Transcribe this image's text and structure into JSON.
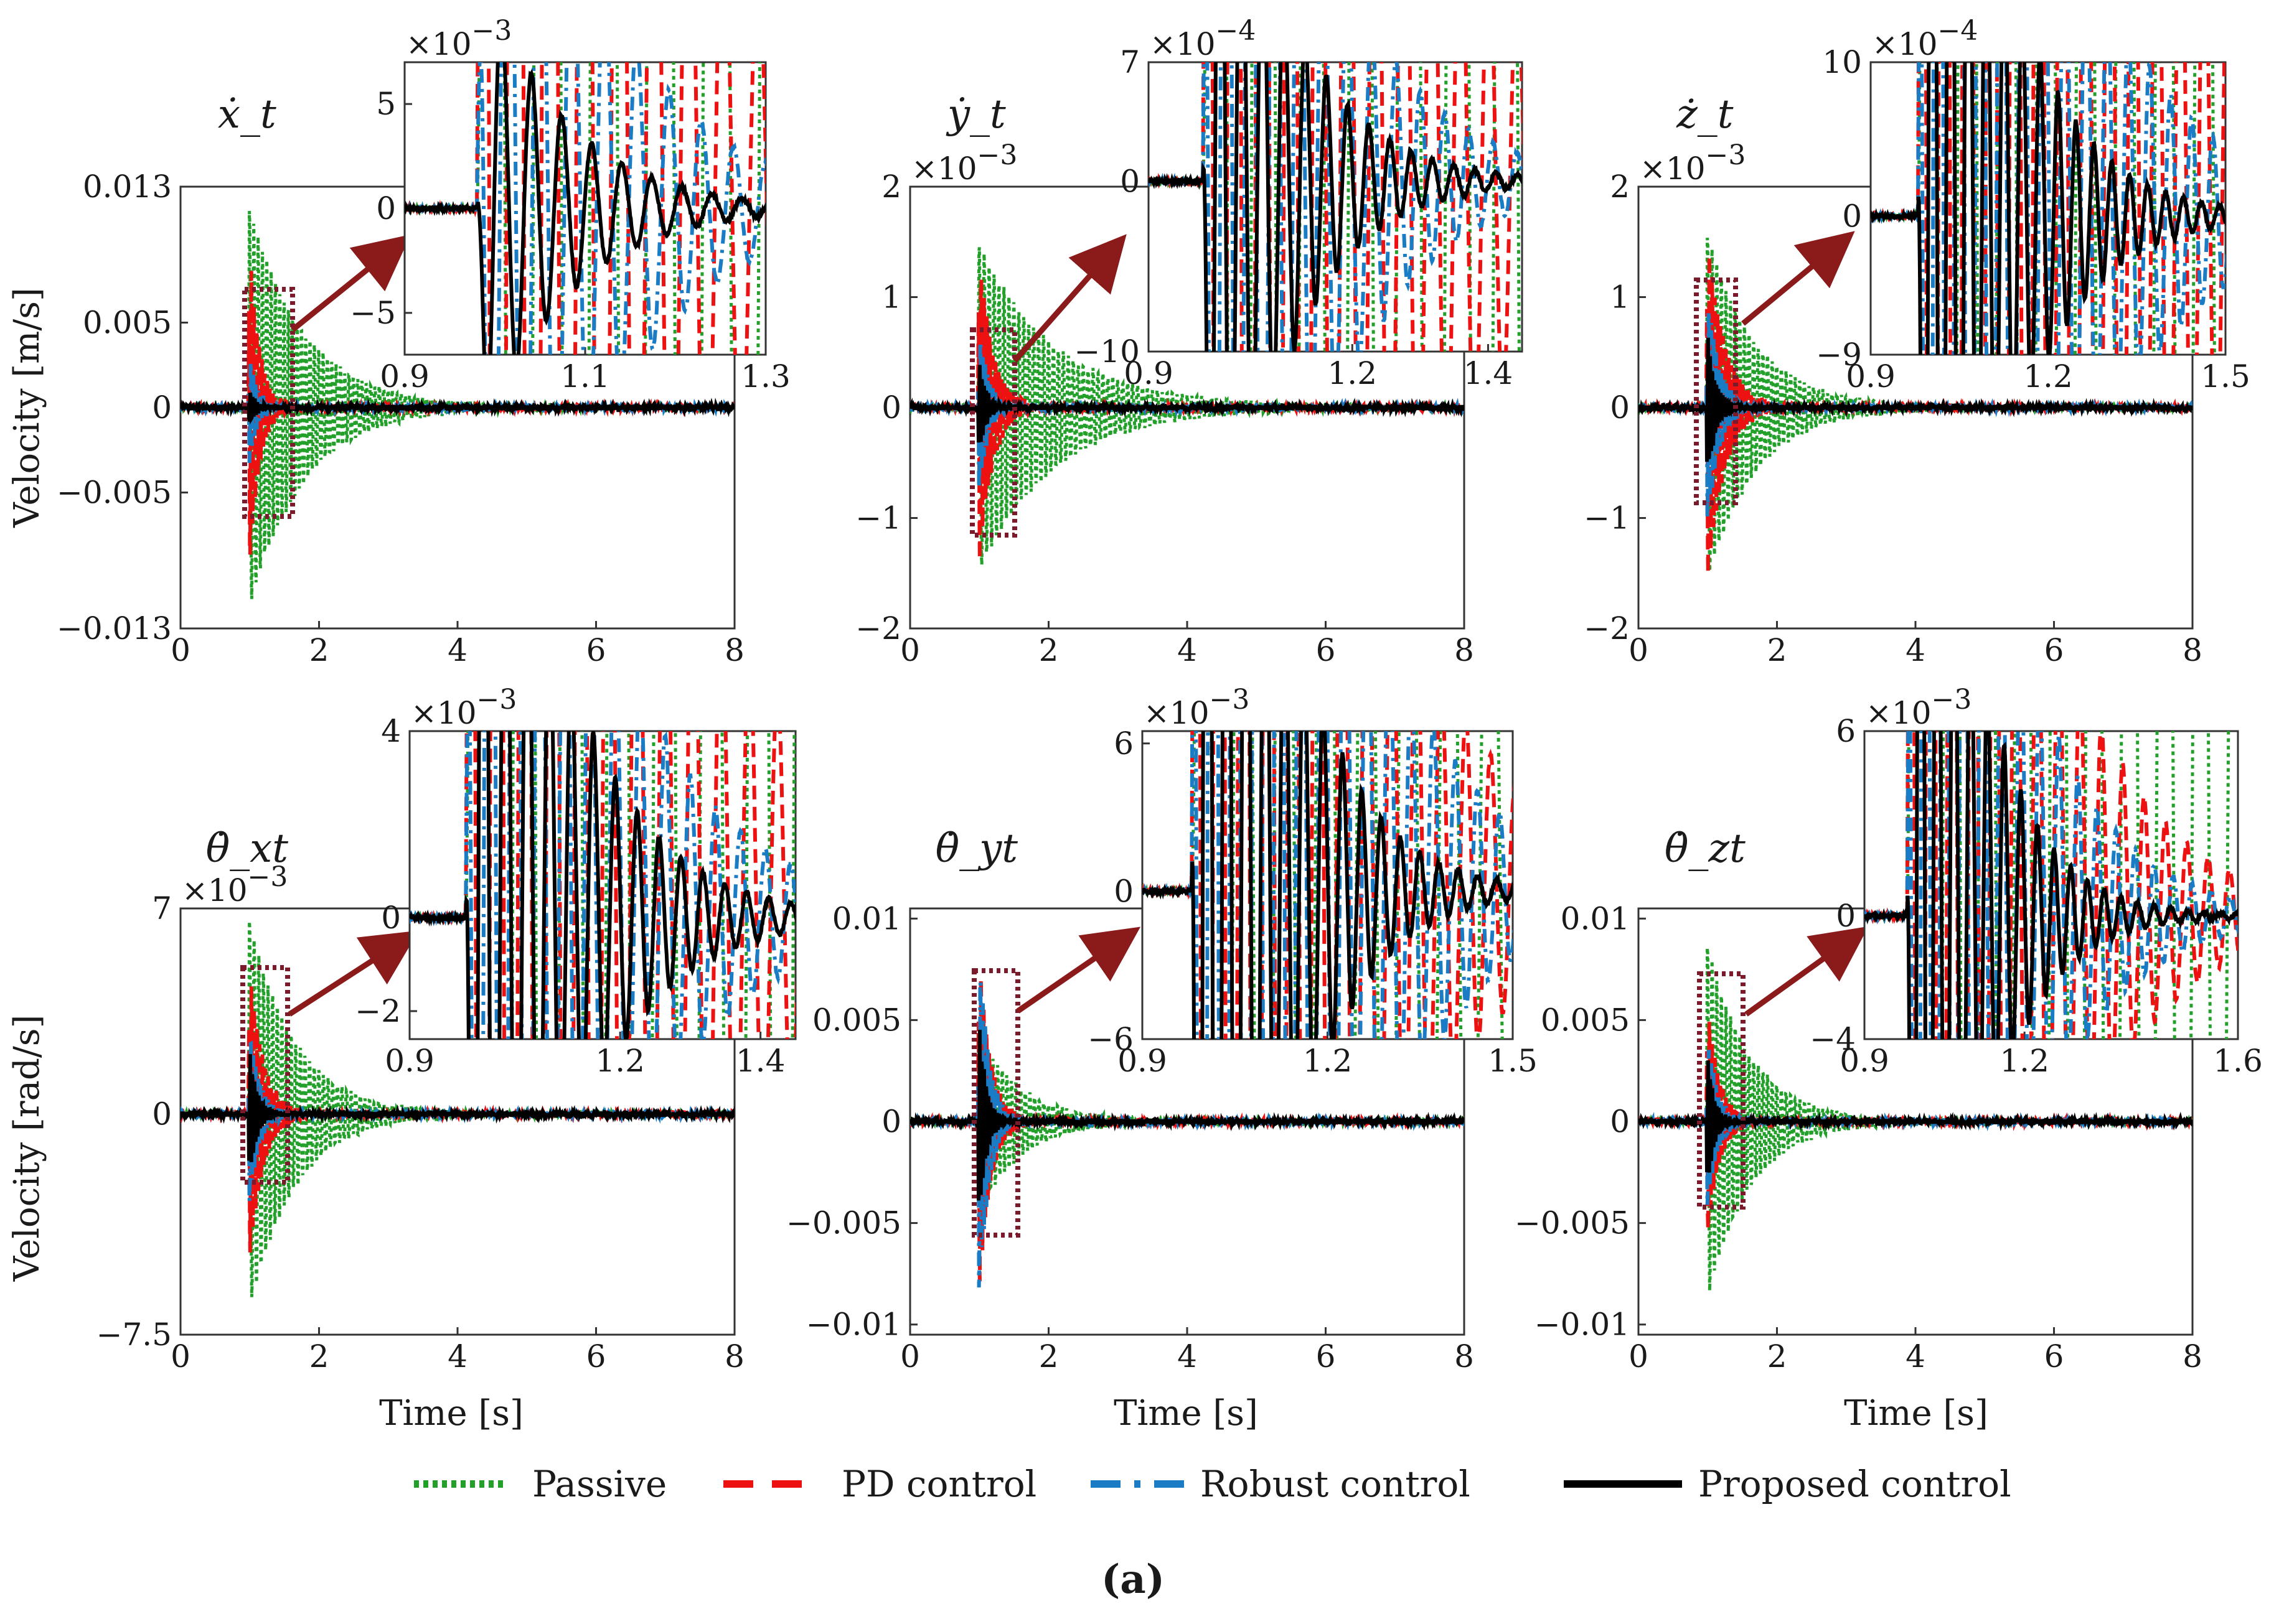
{
  "figure": {
    "caption": "(a)",
    "ylabel_top": "Velocity [m/s]",
    "ylabel_bottom": "Velocity [rad/s]",
    "xlabel": "Time [s]",
    "legend": [
      {
        "label": "Passive",
        "color": "#22a02a",
        "style": "dotted"
      },
      {
        "label": "PD control",
        "color": "#ee1111",
        "style": "dashed"
      },
      {
        "label": "Robust control",
        "color": "#1a7cc4",
        "style": "dashdot"
      },
      {
        "label": "Proposed control",
        "color": "#000000",
        "style": "solid"
      }
    ]
  },
  "chart_data": [
    {
      "type": "line",
      "title": "ẋ_t",
      "xlim": [
        0,
        8
      ],
      "ylim": [
        -0.013,
        0.013
      ],
      "xticks": [
        "0",
        "2",
        "4",
        "6",
        "8"
      ],
      "yticks": [
        {
          "v": 0.013,
          "t": "0.013"
        },
        {
          "v": 0.005,
          "t": "0.005"
        },
        {
          "v": 0,
          "t": "0"
        },
        {
          "v": -0.005,
          "t": "−0.005"
        },
        {
          "v": -0.013,
          "t": "−0.013"
        }
      ],
      "exponent": "",
      "series": [
        {
          "name": "Passive",
          "amp": 0.012,
          "decay": 1.25,
          "freq": 16
        },
        {
          "name": "PD control",
          "amp": 0.011,
          "decay": 7,
          "freq": 26
        },
        {
          "name": "Robust control",
          "amp": 0.004,
          "decay": 9,
          "freq": 28
        },
        {
          "name": "Proposed control",
          "amp": 0.0013,
          "decay": 11,
          "freq": 30
        }
      ],
      "inset": {
        "xlim": [
          0.9,
          1.3
        ],
        "ylim": [
          -7,
          7
        ],
        "xticks": [
          "0.9",
          "1.1",
          "1.3"
        ],
        "yticks": [
          {
            "v": 5,
            "t": "5"
          },
          {
            "v": 0,
            "t": "0"
          },
          {
            "v": -5,
            "t": "−5"
          }
        ],
        "exponent": "−3",
        "window": [
          0.9,
          1.45
        ]
      }
    },
    {
      "type": "line",
      "title": "ẏ_t",
      "xlim": [
        0,
        8
      ],
      "ylim": [
        -2,
        2
      ],
      "xticks": [
        "0",
        "2",
        "4",
        "6",
        "8"
      ],
      "yticks": [
        {
          "v": 2,
          "t": "2"
        },
        {
          "v": 1,
          "t": "1"
        },
        {
          "v": 0,
          "t": "0"
        },
        {
          "v": -1,
          "t": "−1"
        },
        {
          "v": -2,
          "t": "−2"
        }
      ],
      "exponent": "−3",
      "series": [
        {
          "name": "Passive",
          "amp": 1.5,
          "decay": 0.9,
          "freq": 14
        },
        {
          "name": "PD control",
          "amp": 1.55,
          "decay": 5,
          "freq": 24
        },
        {
          "name": "Robust control",
          "amp": 0.9,
          "decay": 8,
          "freq": 28
        },
        {
          "name": "Proposed control",
          "amp": 0.5,
          "decay": 10,
          "freq": 32
        }
      ],
      "inset": {
        "xlim": [
          0.9,
          1.45
        ],
        "ylim": [
          -10,
          7
        ],
        "xticks": [
          "0.9",
          "1.2",
          "1.4"
        ],
        "yticks": [
          {
            "v": 7,
            "t": "7"
          },
          {
            "v": 0,
            "t": "0"
          },
          {
            "v": -10,
            "t": "−10"
          }
        ],
        "exponent": "−4",
        "window": [
          0.9,
          1.55
        ]
      }
    },
    {
      "type": "line",
      "title": "ż_t",
      "xlim": [
        0,
        8
      ],
      "ylim": [
        -2,
        2
      ],
      "xticks": [
        "0",
        "2",
        "4",
        "6",
        "8"
      ],
      "yticks": [
        {
          "v": 2,
          "t": "2"
        },
        {
          "v": 1,
          "t": "1"
        },
        {
          "v": 0,
          "t": "0"
        },
        {
          "v": -1,
          "t": "−1"
        },
        {
          "v": -2,
          "t": "−2"
        }
      ],
      "exponent": "−3",
      "series": [
        {
          "name": "Passive",
          "amp": 1.6,
          "decay": 1.4,
          "freq": 15
        },
        {
          "name": "PD control",
          "amp": 1.7,
          "decay": 4,
          "freq": 25
        },
        {
          "name": "Robust control",
          "amp": 1.2,
          "decay": 6,
          "freq": 28
        },
        {
          "name": "Proposed control",
          "amp": 0.8,
          "decay": 9,
          "freq": 33
        }
      ],
      "inset": {
        "xlim": [
          0.9,
          1.5
        ],
        "ylim": [
          -9,
          10
        ],
        "xticks": [
          "0.9",
          "1.2",
          "1.5"
        ],
        "yticks": [
          {
            "v": 10,
            "t": "10"
          },
          {
            "v": 0,
            "t": "0"
          },
          {
            "v": -9,
            "t": "−9"
          }
        ],
        "exponent": "−4",
        "window": [
          0.9,
          1.6
        ]
      }
    },
    {
      "type": "line",
      "title": "θ̇_xt",
      "xlim": [
        0,
        8
      ],
      "ylim": [
        -7.5,
        7
      ],
      "xticks": [
        "0",
        "2",
        "4",
        "6",
        "8"
      ],
      "yticks": [
        {
          "v": 7,
          "t": "7"
        },
        {
          "v": 0,
          "t": "0"
        },
        {
          "v": -7.5,
          "t": "−7.5"
        }
      ],
      "exponent": "−3",
      "series": [
        {
          "name": "Passive",
          "amp": 6.8,
          "decay": 1.5,
          "freq": 15
        },
        {
          "name": "PD control",
          "amp": 5.5,
          "decay": 5,
          "freq": 25
        },
        {
          "name": "Robust control",
          "amp": 3.5,
          "decay": 7,
          "freq": 28
        },
        {
          "name": "Proposed control",
          "amp": 2.5,
          "decay": 9,
          "freq": 32
        }
      ],
      "inset": {
        "xlim": [
          0.9,
          1.45
        ],
        "ylim": [
          -2.6,
          4
        ],
        "xticks": [
          "0.9",
          "1.2",
          "1.4"
        ],
        "yticks": [
          {
            "v": 4,
            "t": "4"
          },
          {
            "v": 0,
            "t": "0"
          },
          {
            "v": -2,
            "t": "−2"
          }
        ],
        "exponent": "−3",
        "window": [
          0.9,
          1.55
        ]
      }
    },
    {
      "type": "line",
      "title": "θ̇_yt",
      "xlim": [
        0,
        8
      ],
      "ylim": [
        -0.0105,
        0.0105
      ],
      "xticks": [
        "0",
        "2",
        "4",
        "6",
        "8"
      ],
      "yticks": [
        {
          "v": 0.01,
          "t": "0.01"
        },
        {
          "v": 0.005,
          "t": "0.005"
        },
        {
          "v": 0,
          "t": "0"
        },
        {
          "v": -0.005,
          "t": "−0.005"
        },
        {
          "v": -0.01,
          "t": "−0.01"
        }
      ],
      "exponent": "",
      "series": [
        {
          "name": "Passive",
          "amp": 0.0045,
          "decay": 1.6,
          "freq": 15
        },
        {
          "name": "PD control",
          "amp": 0.0095,
          "decay": 6,
          "freq": 25
        },
        {
          "name": "Robust control",
          "amp": 0.0098,
          "decay": 7,
          "freq": 28
        },
        {
          "name": "Proposed control",
          "amp": 0.006,
          "decay": 10,
          "freq": 32
        }
      ],
      "inset": {
        "xlim": [
          0.9,
          1.5
        ],
        "ylim": [
          -6,
          6.5
        ],
        "xticks": [
          "0.9",
          "1.2",
          "1.5"
        ],
        "yticks": [
          {
            "v": 6,
            "t": "6"
          },
          {
            "v": 0,
            "t": "0"
          },
          {
            "v": -6,
            "t": "−6"
          }
        ],
        "exponent": "−3",
        "window": [
          0.9,
          1.6
        ]
      }
    },
    {
      "type": "line",
      "title": "θ̇_zt",
      "xlim": [
        0,
        8
      ],
      "ylim": [
        -0.0105,
        0.0105
      ],
      "xticks": [
        "0",
        "2",
        "4",
        "6",
        "8"
      ],
      "yticks": [
        {
          "v": 0.01,
          "t": "0.01"
        },
        {
          "v": 0.005,
          "t": "0.005"
        },
        {
          "v": 0,
          "t": "0"
        },
        {
          "v": -0.005,
          "t": "−0.005"
        },
        {
          "v": -0.01,
          "t": "−0.01"
        }
      ],
      "exponent": "",
      "series": [
        {
          "name": "Passive",
          "amp": 0.009,
          "decay": 1.6,
          "freq": 15
        },
        {
          "name": "PD control",
          "amp": 0.0065,
          "decay": 6,
          "freq": 25
        },
        {
          "name": "Robust control",
          "amp": 0.005,
          "decay": 7,
          "freq": 28
        },
        {
          "name": "Proposed control",
          "amp": 0.004,
          "decay": 10,
          "freq": 32
        }
      ],
      "inset": {
        "xlim": [
          0.9,
          1.6
        ],
        "ylim": [
          -4,
          6
        ],
        "xticks": [
          "0.9",
          "1.2",
          "1.6"
        ],
        "yticks": [
          {
            "v": 6,
            "t": "6"
          },
          {
            "v": 0,
            "t": "0"
          },
          {
            "v": -4,
            "t": "−4"
          }
        ],
        "exponent": "−3",
        "window": [
          0.9,
          1.7
        ]
      }
    }
  ]
}
